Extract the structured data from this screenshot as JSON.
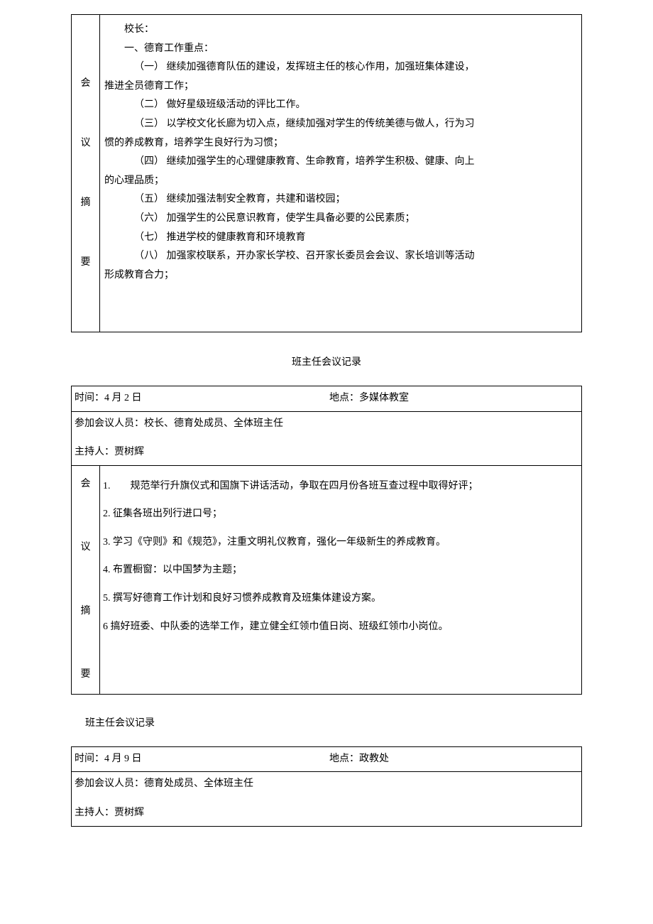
{
  "table1": {
    "leftLabel": "会\n\n议\n\n摘\n\n要",
    "lines": [
      {
        "cls": "indent1",
        "t": "校长："
      },
      {
        "cls": "indent1",
        "t": "一、德育工作重点："
      },
      {
        "cls": "indent2",
        "t": "（一）  继续加强德育队伍的建设，发挥班主任的核心作用，加强班集体建设，"
      },
      {
        "cls": "",
        "t": "推进全员德育工作；"
      },
      {
        "cls": "indent2",
        "t": "（二）  做好星级班级活动的评比工作。"
      },
      {
        "cls": "indent2",
        "t": "（三）  以学校文化长廊为切入点，继续加强对学生的传统美德与做人，行为习"
      },
      {
        "cls": "",
        "t": "惯的养成教育，培养学生良好行为习惯；"
      },
      {
        "cls": "indent2",
        "t": "（四）  继续加强学生的心理健康教育、生命教育，培养学生积极、健康、向上"
      },
      {
        "cls": "",
        "t": "的心理品质；"
      },
      {
        "cls": "indent2",
        "t": "（五）  继续加强法制安全教育，共建和谐校园；"
      },
      {
        "cls": "indent2",
        "t": "（六）  加强学生的公民意识教育，使学生具备必要的公民素质；"
      },
      {
        "cls": "indent2",
        "t": "（七）  推进学校的健康教育和环境教育"
      },
      {
        "cls": "indent2",
        "t": "（八）  加强家校联系，开办家长学校、召开家长委员会会议、家长培训等活动"
      },
      {
        "cls": "",
        "t": "形成教育合力；"
      }
    ]
  },
  "heading2": "班主任会议记录",
  "table2": {
    "time": "时间：4 月 2 日",
    "place": "地点：多媒体教室",
    "attendees": "参加会议人员：校长、德育处成员、全体班主任",
    "host": "主持人：贾树辉",
    "leftLabel": "会\n\n议\n\n摘\n\n要",
    "items": [
      "1.  规范举行升旗仪式和国旗下讲话活动，争取在四月份各班互查过程中取得好评；",
      "2. 征集各班出列行进口号；",
      "3. 学习《守则》和《规范》，注重文明礼仪教育，强化一年级新生的养成教育。",
      "4. 布置橱窗：以中国梦为主题；",
      "5. 撰写好德育工作计划和良好习惯养成教育及班集体建设方案。",
      "6 搞好班委、中队委的选举工作，建立健全红领巾值日岗、班级红领巾小岗位。"
    ]
  },
  "heading3": "班主任会议记录",
  "table3": {
    "time": "时间：4 月 9 日",
    "place": "地点：政教处",
    "attendees": "参加会议人员：德育处成员、全体班主任",
    "host": "主持人：贾树辉"
  }
}
